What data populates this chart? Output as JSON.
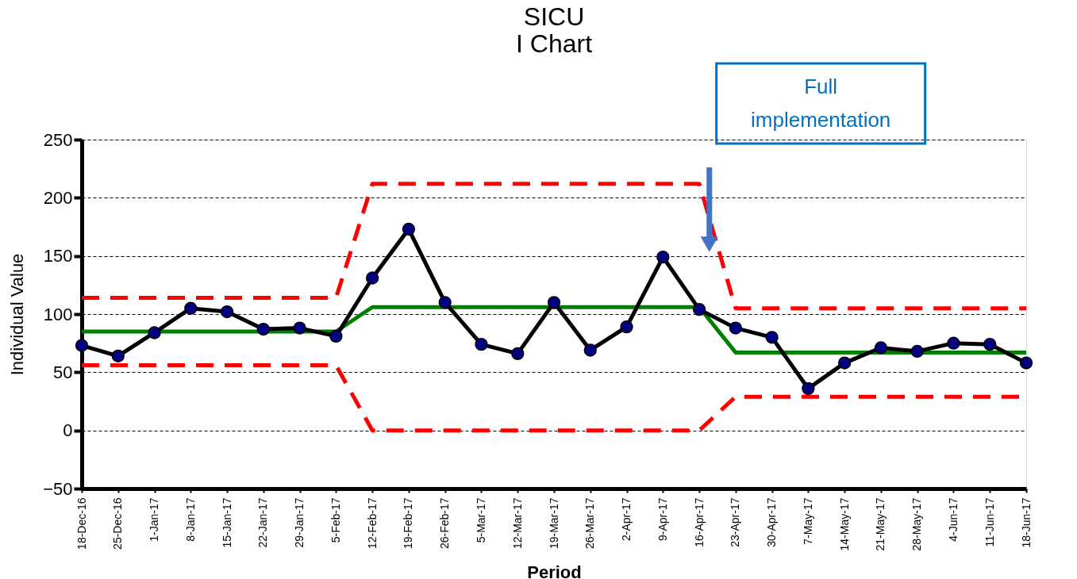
{
  "chart_data": {
    "type": "line",
    "title": [
      "SICU",
      "I Chart"
    ],
    "xlabel": "Period",
    "ylabel": "Individual  Value",
    "categories": [
      "18-Dec-16",
      "25-Dec-16",
      "1-Jan-17",
      "8-Jan-17",
      "15-Jan-17",
      "22-Jan-17",
      "29-Jan-17",
      "5-Feb-17",
      "12-Feb-17",
      "19-Feb-17",
      "26-Feb-17",
      "5-Mar-17",
      "12-Mar-17",
      "19-Mar-17",
      "26-Mar-17",
      "2-Apr-17",
      "9-Apr-17",
      "16-Apr-17",
      "23-Apr-17",
      "30-Apr-17",
      "7-May-17",
      "14-May-17",
      "21-May-17",
      "28-May-17",
      "4-Jun-17",
      "11-Jun-17",
      "18-Jun-17"
    ],
    "series": [
      {
        "color": "#ff0000",
        "line_style": "dashed",
        "marker": "none",
        "values": [
          114,
          114,
          114,
          114,
          114,
          114,
          114,
          114,
          212,
          212,
          212,
          212,
          212,
          212,
          212,
          212,
          212,
          212,
          105,
          105,
          105,
          105,
          105,
          105,
          105,
          105,
          105
        ]
      },
      {
        "color": "#ff0000",
        "line_style": "dashed",
        "marker": "none",
        "values": [
          56,
          56,
          56,
          56,
          56,
          56,
          56,
          56,
          0,
          0,
          0,
          0,
          0,
          0,
          0,
          0,
          0,
          0,
          29,
          29,
          29,
          29,
          29,
          29,
          29,
          29,
          29
        ]
      },
      {
        "color": "#008000",
        "line_style": "solid",
        "marker": "none",
        "values": [
          85,
          85,
          85,
          85,
          85,
          85,
          85,
          85,
          106,
          106,
          106,
          106,
          106,
          106,
          106,
          106,
          106,
          106,
          67,
          67,
          67,
          67,
          67,
          67,
          67,
          67,
          67
        ]
      },
      {
        "color": "#000000",
        "line_style": "solid",
        "marker": "circle",
        "values": [
          73,
          64,
          84,
          105,
          102,
          87,
          88,
          81,
          131,
          173,
          110,
          74,
          66,
          110,
          69,
          89,
          149,
          104,
          88,
          80,
          36,
          58,
          71,
          68,
          75,
          74,
          58
        ]
      }
    ],
    "ylim": [
      -50,
      250
    ],
    "yticks": [
      -50,
      0,
      50,
      100,
      150,
      200,
      250
    ],
    "grid": "y",
    "legend": false,
    "annotations": [
      "Full implementation"
    ]
  }
}
